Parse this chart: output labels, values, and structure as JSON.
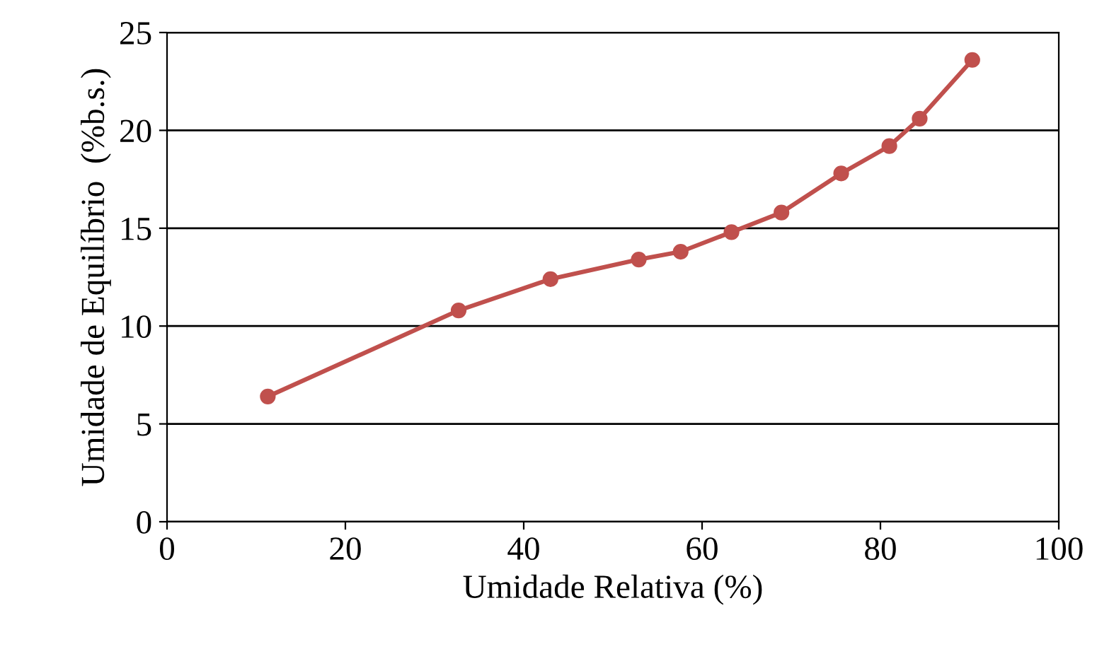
{
  "chart_data": {
    "type": "line",
    "xlabel": "Umidade Relativa (%)",
    "ylabel": "Umidade de Equilíbrio  (%b.s.)",
    "x": [
      11.3,
      32.7,
      43.0,
      52.9,
      57.6,
      63.3,
      68.9,
      75.6,
      81.0,
      84.4,
      90.3
    ],
    "series": [
      {
        "color": "#c0504d",
        "values": [
          6.4,
          10.8,
          12.4,
          13.4,
          13.8,
          14.8,
          15.8,
          17.8,
          19.2,
          20.6,
          23.6
        ]
      }
    ],
    "xlim": [
      0,
      100
    ],
    "xticks": [
      0,
      20,
      40,
      60,
      80,
      100
    ],
    "ylim": [
      0,
      25
    ],
    "yticks": [
      0,
      5,
      10,
      15,
      20,
      25
    ],
    "grid": "y",
    "marker": "circle",
    "line_style": "solid",
    "legend": false
  }
}
